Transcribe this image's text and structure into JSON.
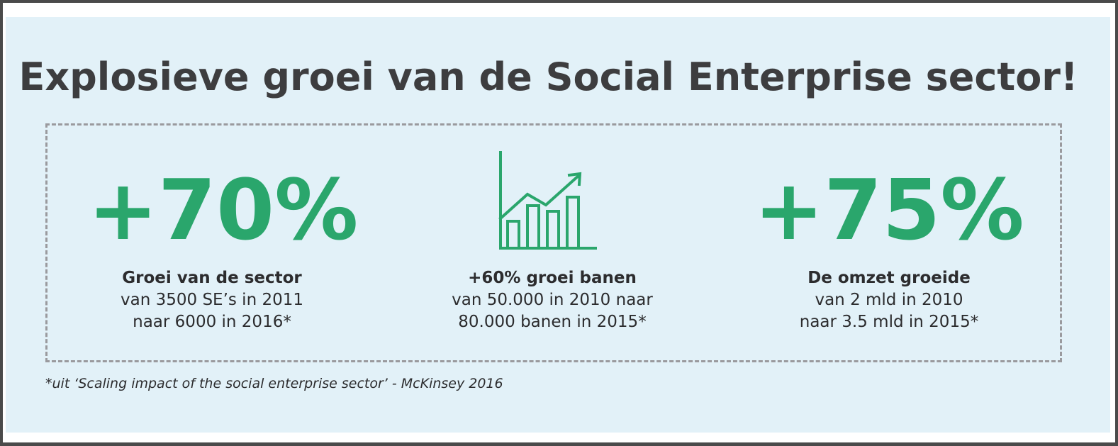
{
  "title": "Explosieve groei van de Social Enterprise sector!",
  "colors": {
    "accent_green": "#2aa66c",
    "panel_background": "#e2f1f8",
    "text_dark": "#3d3d3f",
    "frame_border": "#4a4a4a",
    "dashed_border": "#9a9a9e"
  },
  "stats": [
    {
      "big_value": "+70%",
      "heading": "Groei van de sector",
      "line1": "van 3500 SE’s in 2011",
      "line2": "naar 6000 in 2016*"
    },
    {
      "icon": "growth-chart-icon",
      "heading": "+60% groei banen",
      "line1": "van 50.000 in 2010 naar",
      "line2": "80.000 banen in 2015*"
    },
    {
      "big_value": "+75%",
      "heading": "De omzet groeide",
      "line1": "van 2 mld in 2010",
      "line2": "naar 3.5 mld in 2015*"
    }
  ],
  "footnote": "*uit ‘Scaling impact of the social enterprise sector’ - McKinsey 2016"
}
